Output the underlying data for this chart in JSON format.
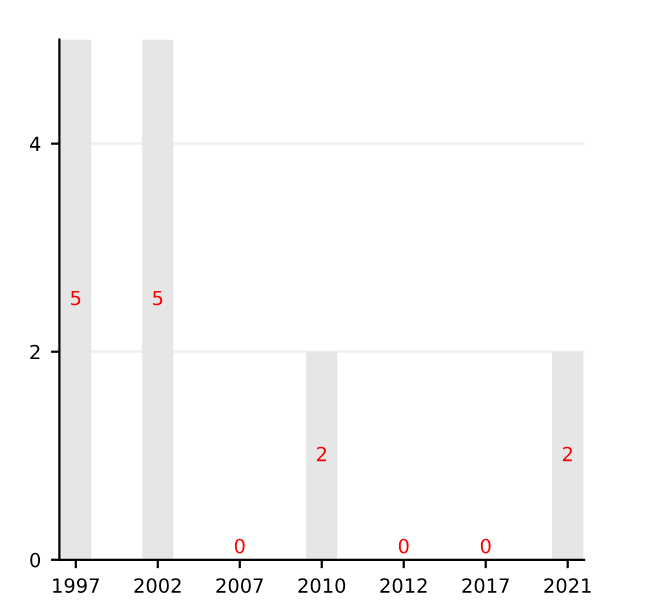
{
  "chart_data": {
    "type": "bar",
    "categories": [
      "1997",
      "2002",
      "2007",
      "2010",
      "2012",
      "2017",
      "2021"
    ],
    "values": [
      5,
      5,
      0,
      2,
      0,
      0,
      2
    ],
    "color": "#e6e6e6",
    "ylim": [
      0,
      5
    ],
    "yticks": [
      0,
      2,
      4
    ],
    "grid": "y",
    "data_labels": true
  }
}
